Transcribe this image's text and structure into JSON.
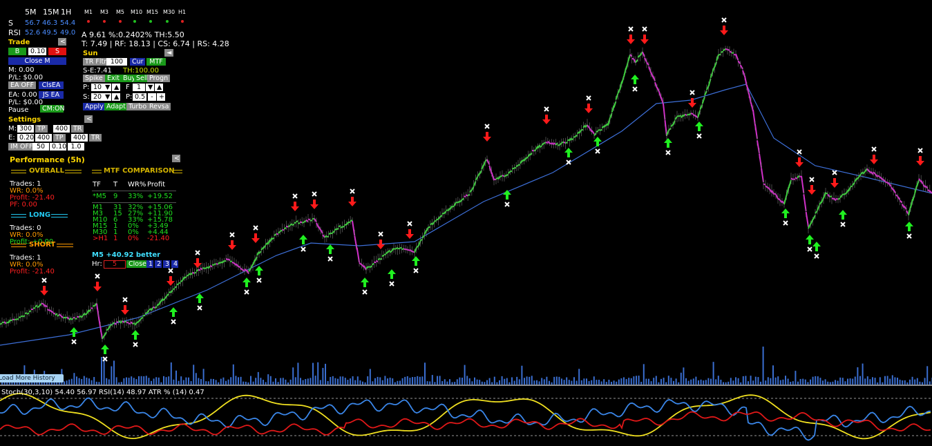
{
  "top": {
    "timeframes": [
      "5M",
      "15M",
      "1H"
    ],
    "s": {
      "label": "S",
      "values": [
        "56.7",
        "46.3",
        "54.4"
      ]
    },
    "rsi": {
      "label": "RSI",
      "values": [
        "52.6",
        "49.5",
        "49.0"
      ]
    },
    "mtf": [
      {
        "label": "M1",
        "color": "#e02020"
      },
      {
        "label": "M3",
        "color": "#e02020"
      },
      {
        "label": "M5",
        "color": "#e02020"
      },
      {
        "label": "M10",
        "color": "#20c020"
      },
      {
        "label": "M15",
        "color": "#20c020"
      },
      {
        "label": "M30",
        "color": "#20c020"
      },
      {
        "label": "H1",
        "color": "#e02020"
      }
    ]
  },
  "info": [
    "A 9.61 %:0.2402% TH:5.50",
    "T: 7.49 | RF: 18.13 | CS: 6.74 | RS: 4.28"
  ],
  "trade": {
    "title": "Trade",
    "collapse": "<",
    "buy": "B",
    "lot": "0.10",
    "sell": "S",
    "close": "Close M",
    "m": "M: 0.00",
    "pl1": "P/L: $0.00",
    "ea_off": "EA OFF",
    "cls_ea": "ClsEA",
    "ea": "EA: 0.00",
    "js_ea": "JS EA",
    "pl2": "P/L: $0.00",
    "pause": "Pause",
    "cm_on": "CM:ON"
  },
  "sun": {
    "title": "Sun",
    "toggle": "◄",
    "tr_fltr": "TR Fltr",
    "tr_val": "100",
    "cur": "Cur",
    "mtf": "MTF",
    "se": "S-E:7.41",
    "th": "TH:100.00",
    "buttons": [
      "Spike",
      "Exit",
      "Buy",
      "Sell",
      "Progn"
    ],
    "p_label": "P:",
    "p_val": "10",
    "f_label": "F",
    "f_val": "1",
    "s_label": "S:",
    "s_val": "20",
    "p2_label": "P:",
    "p2_val": "0.5",
    "minus": "-",
    "plus": "+",
    "down": "▼",
    "up": "▲",
    "actions": [
      "Apply",
      "Adapt",
      "Turbo",
      "Revsa"
    ]
  },
  "settings": {
    "title": "Settings",
    "collapse": "<",
    "rows": [
      [
        "M:",
        "300",
        "TP",
        "400",
        "TR"
      ],
      [
        "E:",
        "0.20",
        "400",
        "TP",
        "400",
        "TR"
      ],
      [
        "IM OFF",
        "50",
        "0.10",
        "1.0"
      ]
    ]
  },
  "performance": {
    "title": "Performance (5h)",
    "collapse": "<",
    "overall": {
      "heading": "OVERALL",
      "lines": [
        "Trades: 1",
        "WR: 0.0%",
        "Profit: -21.40",
        "PF: 0.00"
      ]
    },
    "long": {
      "heading": "LONG",
      "lines": [
        "Trades: 0",
        "WR: 0.0%",
        "Profit: +0.00"
      ]
    },
    "short": {
      "heading": "SHORT",
      "lines": [
        "Trades: 1",
        "WR: 0.0%",
        "Profit: -21.40"
      ]
    }
  },
  "mtf_comparison": {
    "heading": "MTF COMPARISON",
    "columns": [
      "TF",
      "T",
      "WR%",
      "Profit"
    ],
    "rows": [
      [
        "*M5",
        "9",
        "33%",
        "+19.52"
      ],
      [
        "M1",
        "31",
        "32%",
        "+15.06"
      ],
      [
        "M3",
        "15",
        "27%",
        "+11.90"
      ],
      [
        "M10",
        "6",
        "33%",
        "+15.78"
      ],
      [
        "M15",
        "1",
        "0%",
        "+3.49"
      ],
      [
        "M30",
        "1",
        "0%",
        "+4.44"
      ],
      [
        ">H1",
        "1",
        "0%",
        "-21.40"
      ]
    ],
    "summary": "M5 +40.92 better",
    "hr_label": "Hr:",
    "hr_val": "5",
    "close": "Close",
    "pages": [
      "1",
      "2",
      "3",
      "4"
    ]
  },
  "load_more": "Load More History",
  "indicator_label": "Stoch(30,3,10) 54.40 56.97 RSI(14) 48.97 ATR % (14) 0.47"
}
